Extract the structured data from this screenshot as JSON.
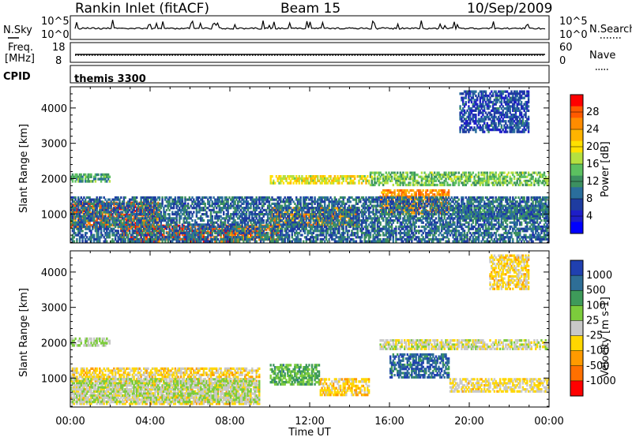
{
  "header": {
    "station": "Rankin Inlet (fitACF)",
    "beam": "Beam 15",
    "date": "10/Sep/2009"
  },
  "top_panels": {
    "nsky_label": "N.Sky",
    "nsky_ticks": [
      "10^5",
      "10^0"
    ],
    "nsearch_label": "N.Search",
    "nsearch_ticks": [
      "10^5",
      "10^0"
    ],
    "freq_label_1": "Freq.",
    "freq_label_2": "[MHz]",
    "freq_ticks": [
      "18",
      "8"
    ],
    "nave_label": "Nave",
    "nave_ticks": [
      "60",
      "0"
    ],
    "cpid_label": "CPID",
    "cpid_value": "themis 3300"
  },
  "axes": {
    "ylabel": "Slant Range [km]",
    "xlabel": "Time UT",
    "x_ticks": [
      "00:00",
      "04:00",
      "08:00",
      "12:00",
      "16:00",
      "20:00",
      "00:00"
    ],
    "y_ticks": [
      "1000",
      "2000",
      "3000",
      "4000"
    ]
  },
  "colorbars": {
    "power": {
      "label": "Power [dB]",
      "ticks": [
        "28",
        "24",
        "20",
        "16",
        "12",
        "8",
        "4"
      ],
      "colors": [
        "#ff0000",
        "#ff5a00",
        "#ff8c00",
        "#ffb400",
        "#ffe000",
        "#b4e040",
        "#5cc060",
        "#3c9060",
        "#2a6e9c",
        "#1e3ca0",
        "#1e1ec8",
        "#0000ff"
      ]
    },
    "velocity": {
      "label": "Velocity [m s-1]",
      "ticks": [
        "1000",
        "500",
        "100",
        "25",
        "-25",
        "-100",
        "-500",
        "-1000"
      ],
      "colors": [
        "#2040b0",
        "#2e6e96",
        "#3e9a5a",
        "#7ccc3c",
        "#c8c8c8",
        "#ffd700",
        "#ff9a00",
        "#ff7000",
        "#ff0000"
      ]
    }
  },
  "chart_data": [
    {
      "type": "heatmap",
      "title": "",
      "xlabel": "",
      "ylabel": "Slant Range [km]",
      "xlim": [
        0,
        24
      ],
      "ylim": [
        180,
        4600
      ],
      "colorbar_label": "Power [dB]",
      "color_range": [
        0,
        30
      ],
      "regions": [
        {
          "t0": 0.0,
          "t1": 4.5,
          "r0": 600,
          "r1": 1350,
          "value": 26
        },
        {
          "t0": 2.5,
          "t1": 8.5,
          "r0": 200,
          "r1": 700,
          "value": 27
        },
        {
          "t0": 8.0,
          "t1": 10.5,
          "r0": 250,
          "r1": 700,
          "value": 25
        },
        {
          "t0": 10.0,
          "t1": 14.5,
          "r0": 650,
          "r1": 1200,
          "value": 24
        },
        {
          "t0": 15.5,
          "t1": 19.0,
          "r0": 1000,
          "r1": 1700,
          "value": 24
        },
        {
          "t0": 0.0,
          "t1": 2.0,
          "r0": 1900,
          "r1": 2150,
          "value": 12
        },
        {
          "t0": 10.0,
          "t1": 15.0,
          "r0": 1850,
          "r1": 2100,
          "value": 18
        },
        {
          "t0": 15.0,
          "t1": 24.0,
          "r0": 1800,
          "r1": 2200,
          "value": 14
        },
        {
          "t0": 19.0,
          "t1": 24.0,
          "r0": 850,
          "r1": 1250,
          "value": 10
        },
        {
          "t0": 0.0,
          "t1": 24.0,
          "r0": 200,
          "r1": 1500,
          "value": 8
        },
        {
          "t0": 19.5,
          "t1": 23.0,
          "r0": 3300,
          "r1": 4500,
          "value": 6
        }
      ]
    },
    {
      "type": "heatmap",
      "title": "",
      "xlabel": "Time UT",
      "ylabel": "Slant Range [km]",
      "xlim": [
        0,
        24
      ],
      "ylim": [
        180,
        4600
      ],
      "colorbar_label": "Velocity [m s-1]",
      "color_range": [
        -1000,
        1000
      ],
      "regions": [
        {
          "t0": 0.0,
          "t1": 9.5,
          "r0": 250,
          "r1": 1300,
          "value": -200
        },
        {
          "t0": 0.0,
          "t1": 9.5,
          "r0": 300,
          "r1": 1000,
          "value": 100
        },
        {
          "t0": 10.0,
          "t1": 12.5,
          "r0": 800,
          "r1": 1400,
          "value": 400
        },
        {
          "t0": 12.5,
          "t1": 15.0,
          "r0": 500,
          "r1": 1000,
          "value": -300
        },
        {
          "t0": 16.0,
          "t1": 19.0,
          "r0": 1000,
          "r1": 1700,
          "value": 800
        },
        {
          "t0": 15.5,
          "t1": 24.0,
          "r0": 1800,
          "r1": 2100,
          "value": 0
        },
        {
          "t0": 19.0,
          "t1": 24.0,
          "r0": 600,
          "r1": 1000,
          "value": -150
        },
        {
          "t0": 0.0,
          "t1": 2.0,
          "r0": 1900,
          "r1": 2150,
          "value": 150
        },
        {
          "t0": 21.0,
          "t1": 23.0,
          "r0": 3500,
          "r1": 4500,
          "value": -200
        }
      ]
    }
  ]
}
